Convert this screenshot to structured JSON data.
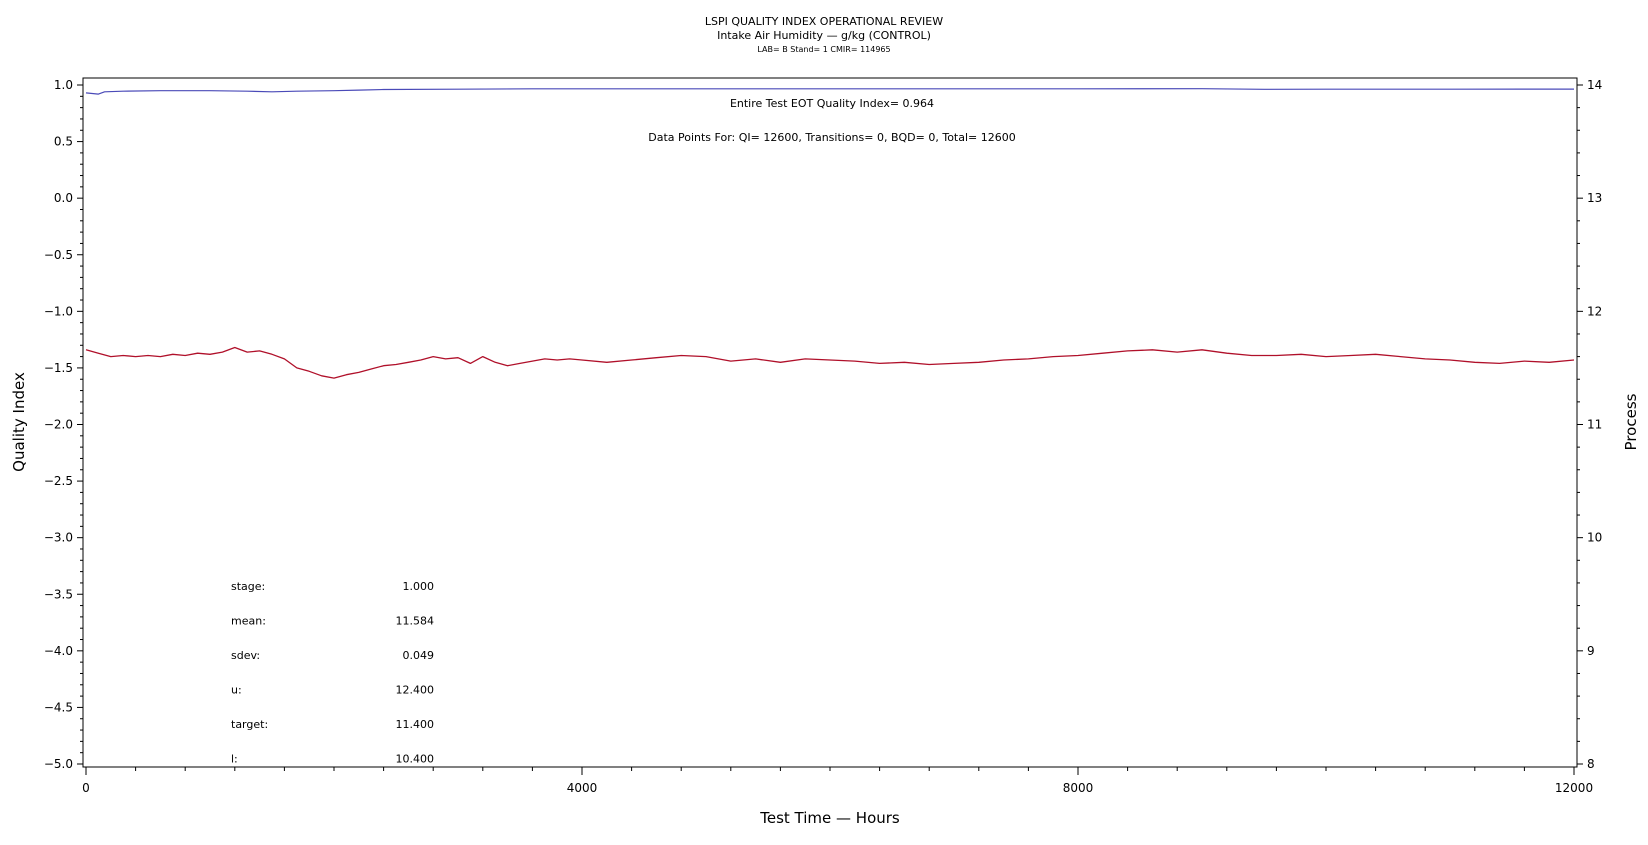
{
  "header": {
    "title": "LSPI QUALITY INDEX OPERATIONAL REVIEW",
    "subtitle": "Intake Air Humidity — g/kg (CONTROL)",
    "lab_line": "LAB= B Stand= 1 CMIR= 114965"
  },
  "annotations": {
    "eot": "Entire Test EOT Quality Index=   0.964",
    "points": "Data Points For: QI= 12600, Transitions=     0, BQD=     0, Total= 12600"
  },
  "stats": [
    {
      "label": "stage:",
      "value": "1.000"
    },
    {
      "label": "mean:",
      "value": "11.584"
    },
    {
      "label": "sdev:",
      "value": "0.049"
    },
    {
      "label": "u:",
      "value": "12.400"
    },
    {
      "label": "target:",
      "value": "11.400"
    },
    {
      "label": "l:",
      "value": "10.400"
    }
  ],
  "colors": {
    "quality_index": "#4a4ab8",
    "process": "#b0102a",
    "axis": "#000000"
  },
  "chart_data": {
    "type": "line",
    "xlabel": "Test Time — Hours",
    "ylabel": "Quality Index",
    "y2label": "Process",
    "xlim": [
      0,
      12000
    ],
    "ylim": [
      -5.0,
      1.0
    ],
    "y2lim": [
      8,
      14
    ],
    "x_ticks": [
      0,
      4000,
      8000,
      12000
    ],
    "x_tick_labels": [
      "0",
      "4000",
      "8000",
      "12000"
    ],
    "y_ticks": [
      1.0,
      0.5,
      0.0,
      -0.5,
      -1.0,
      -1.5,
      -2.0,
      -2.5,
      -3.0,
      -3.5,
      -4.0,
      -4.5,
      -5.0
    ],
    "y_tick_labels": [
      "1.0",
      "0.5",
      "0.0",
      "−0.5",
      "−1.0",
      "−1.5",
      "−2.0",
      "−2.5",
      "−3.0",
      "−3.5",
      "−4.0",
      "−4.5",
      "−5.0"
    ],
    "y2_ticks": [
      14,
      13,
      12,
      11,
      10,
      9,
      8
    ],
    "y2_tick_labels": [
      "14",
      "13",
      "12",
      "11",
      "10",
      "9",
      "8"
    ],
    "grid": false,
    "series": [
      {
        "axis": "left",
        "x": [
          0,
          100,
          150,
          300,
          600,
          1000,
          1300,
          1500,
          1700,
          2000,
          2200,
          2400,
          3000,
          3600,
          4000,
          5000,
          6000,
          7000,
          8000,
          9000,
          9500,
          10000,
          11000,
          12000
        ],
        "y": [
          0.93,
          0.92,
          0.94,
          0.945,
          0.95,
          0.95,
          0.945,
          0.94,
          0.945,
          0.95,
          0.955,
          0.96,
          0.963,
          0.966,
          0.966,
          0.966,
          0.966,
          0.966,
          0.966,
          0.967,
          0.962,
          0.963,
          0.963,
          0.964
        ]
      },
      {
        "axis": "right",
        "x": [
          0,
          100,
          200,
          300,
          400,
          500,
          600,
          700,
          800,
          900,
          1000,
          1100,
          1200,
          1300,
          1400,
          1500,
          1600,
          1700,
          1800,
          1900,
          2000,
          2100,
          2200,
          2300,
          2400,
          2500,
          2600,
          2700,
          2800,
          2900,
          3000,
          3100,
          3200,
          3300,
          3400,
          3500,
          3600,
          3700,
          3800,
          3900,
          4000,
          4200,
          4400,
          4600,
          4800,
          5000,
          5200,
          5400,
          5600,
          5800,
          6000,
          6200,
          6400,
          6600,
          6800,
          7000,
          7200,
          7400,
          7600,
          7800,
          8000,
          8200,
          8400,
          8600,
          8800,
          9000,
          9200,
          9400,
          9600,
          9800,
          10000,
          10200,
          10400,
          10600,
          10800,
          11000,
          11200,
          11400,
          11600,
          11800,
          12000
        ],
        "y": [
          11.66,
          11.63,
          11.6,
          11.61,
          11.6,
          11.61,
          11.6,
          11.62,
          11.61,
          11.63,
          11.62,
          11.64,
          11.68,
          11.64,
          11.65,
          11.62,
          11.58,
          11.5,
          11.47,
          11.43,
          11.41,
          11.44,
          11.46,
          11.49,
          11.52,
          11.53,
          11.55,
          11.57,
          11.6,
          11.58,
          11.59,
          11.54,
          11.6,
          11.55,
          11.52,
          11.54,
          11.56,
          11.58,
          11.57,
          11.58,
          11.57,
          11.55,
          11.57,
          11.59,
          11.61,
          11.6,
          11.56,
          11.58,
          11.55,
          11.58,
          11.57,
          11.56,
          11.54,
          11.55,
          11.53,
          11.54,
          11.55,
          11.57,
          11.58,
          11.6,
          11.61,
          11.63,
          11.65,
          11.66,
          11.64,
          11.66,
          11.63,
          11.61,
          11.61,
          11.62,
          11.6,
          11.61,
          11.62,
          11.6,
          11.58,
          11.57,
          11.55,
          11.54,
          11.56,
          11.55,
          11.57
        ]
      }
    ]
  }
}
